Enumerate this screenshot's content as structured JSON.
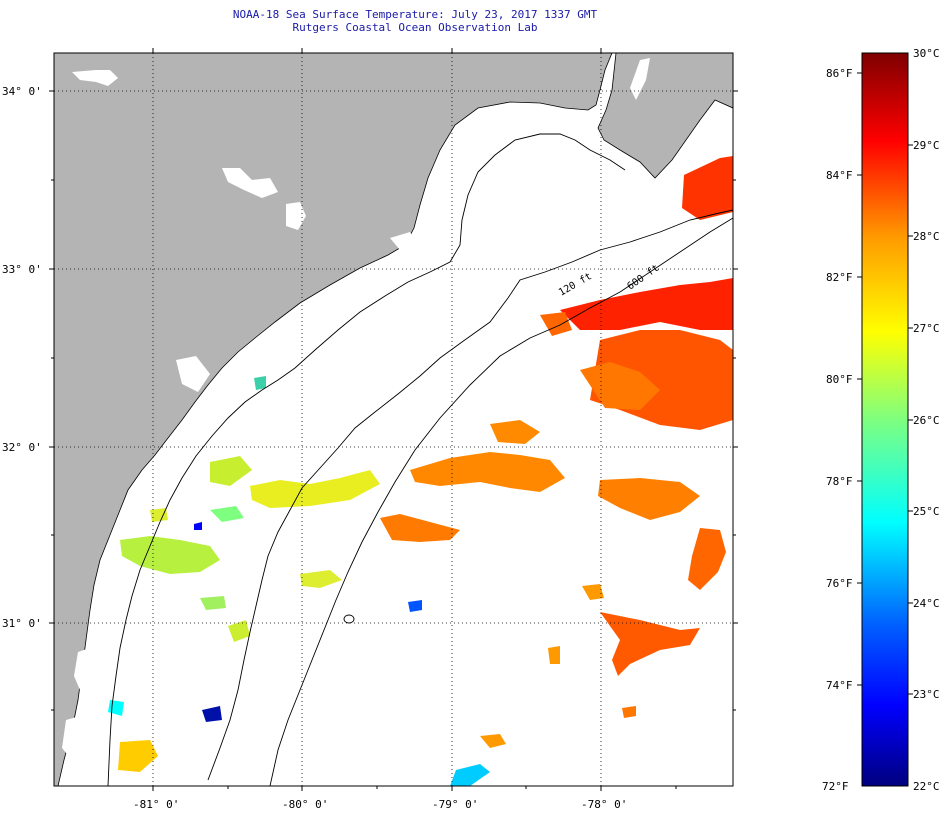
{
  "header": {
    "title": "NOAA-18 Sea Surface Temperature:  July 23, 2017 1337 GMT",
    "subtitle": "Rutgers Coastal Ocean Observation Lab"
  },
  "map": {
    "lon_range": [
      -81.5,
      -77.15
    ],
    "lat_range": [
      30.2,
      34.25
    ],
    "lat_ticks": [
      {
        "value": 34.0,
        "label": "34° 0'"
      },
      {
        "value": 33.0,
        "label": "33° 0'"
      },
      {
        "value": 32.0,
        "label": "32° 0'"
      },
      {
        "value": 31.0,
        "label": "31° 0'"
      }
    ],
    "lon_ticks": [
      {
        "value": -81.0,
        "label": "-81° 0'"
      },
      {
        "value": -80.0,
        "label": "-80° 0'"
      },
      {
        "value": -79.0,
        "label": "-79° 0'"
      },
      {
        "value": -78.0,
        "label": "-78° 0'"
      }
    ],
    "contour_labels": [
      "120 ft",
      "600 ft"
    ],
    "colors": {
      "land": "#b4b4b4",
      "ocean": "#ffffff",
      "frame": "#000000"
    }
  },
  "legend": {
    "range_f": [
      72,
      86
    ],
    "range_c": [
      22,
      30
    ],
    "fahrenheit_labels": [
      "86°F",
      "84°F",
      "82°F",
      "80°F",
      "78°F",
      "76°F",
      "74°F",
      "72°F"
    ],
    "celsius_labels": [
      "30°C",
      "29°C",
      "28°C",
      "27°C",
      "26°C",
      "25°C",
      "24°C",
      "23°C",
      "22°C"
    ],
    "colormap": [
      "#00007f",
      "#0000ff",
      "#007fff",
      "#00ffff",
      "#7fff7f",
      "#ffff00",
      "#ff7f00",
      "#ff0000",
      "#7f0000"
    ]
  }
}
